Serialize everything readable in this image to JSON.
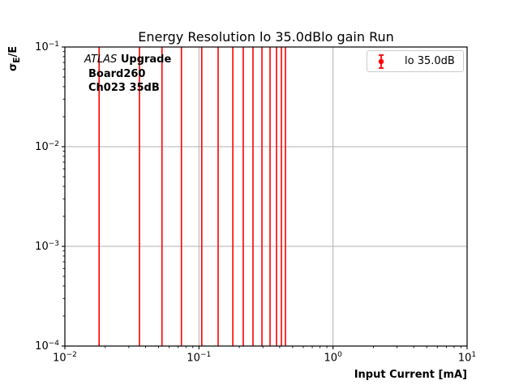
{
  "colors": {
    "series": "#ff0000",
    "grid": "#b0b0b0",
    "axis": "#000000",
    "legend_border": "#cccccc",
    "background": "#ffffff"
  },
  "annotation": {
    "brand_italic": "ATLAS",
    "brand_bold": "Upgrade",
    "line2": "Board260",
    "line3": "Ch023 35dB"
  },
  "legend": {
    "position": "upper right",
    "entries": [
      {
        "label": "lo 35.0dB",
        "color": "#ff0000",
        "marker": "errorbar-point"
      }
    ]
  },
  "chart_data": {
    "type": "scatter",
    "style": "errorbar-vertical-lines",
    "title": "Energy Resolution lo 35.0dBlo gain Run",
    "xlabel": "Input Current [mA]",
    "ylabel_base": "σ",
    "ylabel_sub": "E",
    "ylabel_suffix": "/E",
    "xscale": "log",
    "yscale": "log",
    "xlim": [
      0.01,
      10
    ],
    "ylim": [
      0.0001,
      0.1
    ],
    "x_tick_exponents": [
      -2,
      -1,
      0,
      1
    ],
    "y_tick_exponents": [
      -1,
      -2,
      -3,
      -4
    ],
    "grid": "major, light gray, both axes",
    "series": [
      {
        "name": "lo 35.0dB",
        "color": "#ff0000",
        "note": "error bars span the full visible y-range 1e-4 to 1e-1 (clipped at axes)",
        "x": [
          0.018,
          0.036,
          0.053,
          0.074,
          0.105,
          0.139,
          0.179,
          0.214,
          0.253,
          0.295,
          0.339,
          0.379,
          0.412,
          0.442
        ]
      }
    ]
  }
}
